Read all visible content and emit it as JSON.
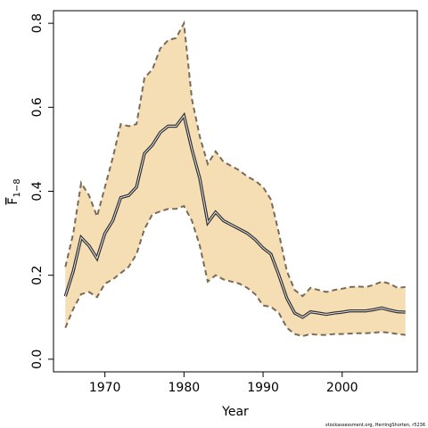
{
  "chart_data": {
    "type": "line",
    "title": "",
    "xlabel": "Year",
    "ylabel": {
      "base": "F",
      "sub": "1−8"
    },
    "xlim": [
      1963.5,
      2009.5
    ],
    "ylim": [
      -0.03,
      0.83
    ],
    "xticks": [
      1970,
      1980,
      1990,
      2000
    ],
    "yticks": [
      0.0,
      0.2,
      0.4,
      0.6,
      0.8
    ],
    "ytick_labels": [
      "0.0",
      "0.2",
      "0.4",
      "0.6",
      "0.8"
    ],
    "grid": false,
    "legend": "none",
    "colors": {
      "band": "#f5deb3",
      "bound_line": "#7a6a58",
      "line": "#333333"
    },
    "x": [
      1965,
      1966,
      1967,
      1968,
      1969,
      1970,
      1971,
      1972,
      1973,
      1974,
      1975,
      1976,
      1977,
      1978,
      1979,
      1980,
      1981,
      1982,
      1983,
      1984,
      1985,
      1986,
      1987,
      1988,
      1989,
      1990,
      1991,
      1992,
      1993,
      1994,
      1995,
      1996,
      1997,
      1998,
      1999,
      2000,
      2001,
      2002,
      2003,
      2004,
      2005,
      2006,
      2007,
      2008
    ],
    "series": [
      {
        "role": "upper",
        "values": [
          0.22,
          0.3,
          0.42,
          0.39,
          0.34,
          0.41,
          0.48,
          0.56,
          0.555,
          0.56,
          0.67,
          0.69,
          0.74,
          0.76,
          0.765,
          0.8,
          0.62,
          0.53,
          0.465,
          0.495,
          0.47,
          0.46,
          0.45,
          0.435,
          0.425,
          0.41,
          0.38,
          0.3,
          0.21,
          0.165,
          0.15,
          0.17,
          0.165,
          0.16,
          0.165,
          0.168,
          0.172,
          0.173,
          0.172,
          0.177,
          0.185,
          0.18,
          0.17,
          0.172
        ]
      },
      {
        "role": "estimate",
        "values": [
          0.15,
          0.21,
          0.29,
          0.27,
          0.24,
          0.3,
          0.33,
          0.385,
          0.39,
          0.41,
          0.49,
          0.51,
          0.54,
          0.555,
          0.555,
          0.58,
          0.5,
          0.43,
          0.325,
          0.35,
          0.33,
          0.32,
          0.31,
          0.3,
          0.285,
          0.265,
          0.25,
          0.2,
          0.145,
          0.11,
          0.1,
          0.113,
          0.11,
          0.107,
          0.11,
          0.112,
          0.115,
          0.115,
          0.115,
          0.118,
          0.122,
          0.117,
          0.113,
          0.112
        ]
      },
      {
        "role": "lower",
        "values": [
          0.075,
          0.12,
          0.155,
          0.16,
          0.148,
          0.18,
          0.19,
          0.205,
          0.22,
          0.25,
          0.31,
          0.345,
          0.352,
          0.358,
          0.358,
          0.365,
          0.33,
          0.27,
          0.185,
          0.2,
          0.19,
          0.185,
          0.18,
          0.17,
          0.155,
          0.128,
          0.125,
          0.11,
          0.075,
          0.06,
          0.055,
          0.06,
          0.058,
          0.058,
          0.06,
          0.06,
          0.061,
          0.062,
          0.062,
          0.063,
          0.065,
          0.063,
          0.06,
          0.058
        ]
      }
    ]
  },
  "credit": "stockassessment.org, HerringShorten, r5236"
}
